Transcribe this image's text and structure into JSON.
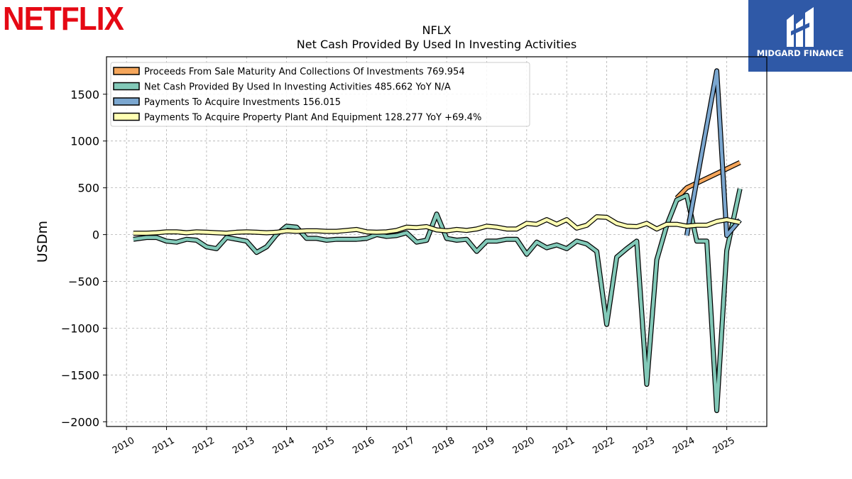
{
  "logos": {
    "left_text": "NETFLIX",
    "right_text": "MIDGARD FINANCE"
  },
  "chart_data": {
    "type": "line",
    "title": "NFLX",
    "subtitle": "Net Cash Provided By Used In Investing Activities",
    "xlabel": "",
    "ylabel": "USDm",
    "xlim": [
      2009.5,
      2026.0
    ],
    "ylim": [
      -2050,
      1900
    ],
    "yticks": [
      -2000,
      -1500,
      -1000,
      -500,
      0,
      500,
      1000,
      1500
    ],
    "yticklabels": [
      "−2000",
      "−1500",
      "−1000",
      "−500",
      "0",
      "500",
      "1000",
      "1500"
    ],
    "xticks": [
      "2010",
      "2011",
      "2012",
      "2013",
      "2014",
      "2015",
      "2016",
      "2017",
      "2018",
      "2019",
      "2020",
      "2021",
      "2022",
      "2023",
      "2024",
      "2025"
    ],
    "grid": true,
    "legend_position": "top-left",
    "series": [
      {
        "name": "Proceeds From Sale Maturity And Collections Of Investments",
        "legend_label": "Proceeds From Sale Maturity And Collections Of Investments  769.954",
        "color": "#f5a65b",
        "x": [
          2023.75,
          2024.0,
          2025.33
        ],
        "y": [
          390,
          500,
          770
        ]
      },
      {
        "name": "Net Cash Provided By Used In Investing Activities",
        "legend_label": "Net Cash Provided By Used In Investing Activities  485.662 YoY N/A",
        "color": "#82c9b8",
        "x": [
          2010.17,
          2010.5,
          2010.75,
          2011.0,
          2011.25,
          2011.5,
          2011.75,
          2012.0,
          2012.25,
          2012.5,
          2012.75,
          2013.0,
          2013.25,
          2013.5,
          2013.75,
          2014.0,
          2014.25,
          2014.5,
          2014.75,
          2015.0,
          2015.25,
          2015.5,
          2015.75,
          2016.0,
          2016.25,
          2016.5,
          2016.75,
          2017.0,
          2017.25,
          2017.5,
          2017.75,
          2018.0,
          2018.25,
          2018.5,
          2018.75,
          2019.0,
          2019.25,
          2019.5,
          2019.75,
          2020.0,
          2020.25,
          2020.5,
          2020.75,
          2021.0,
          2021.25,
          2021.5,
          2021.75,
          2022.0,
          2022.25,
          2022.5,
          2022.75,
          2023.0,
          2023.25,
          2023.5,
          2023.75,
          2024.0,
          2024.25,
          2024.5,
          2024.75,
          2025.0,
          2025.33
        ],
        "y": [
          -50,
          -30,
          -30,
          -70,
          -80,
          -50,
          -60,
          -130,
          -150,
          -30,
          -50,
          -70,
          -190,
          -130,
          0,
          90,
          80,
          -40,
          -40,
          -60,
          -50,
          -50,
          -50,
          -40,
          0,
          -20,
          -10,
          20,
          -80,
          -60,
          220,
          -40,
          -60,
          -50,
          -180,
          -70,
          -70,
          -50,
          -50,
          -210,
          -80,
          -140,
          -110,
          -150,
          -70,
          -100,
          -180,
          -960,
          -240,
          -150,
          -70,
          -1600,
          -270,
          100,
          370,
          420,
          -70,
          -70,
          -1880,
          -170,
          490
        ]
      },
      {
        "name": "Payments To Acquire Investments",
        "legend_label": "Payments To Acquire Investments  156.015",
        "color": "#7ba7d0",
        "x": [
          2024.0,
          2024.75,
          2025.0,
          2025.33
        ],
        "y": [
          -10,
          1750,
          -10,
          156
        ]
      },
      {
        "name": "Payments To Acquire Property Plant And Equipment",
        "legend_label": "Payments To Acquire Property Plant And Equipment  128.277 YoY +69.4%",
        "color": "#ffffb3",
        "x": [
          2010.17,
          2010.5,
          2010.75,
          2011.0,
          2011.25,
          2011.5,
          2011.75,
          2012.0,
          2012.25,
          2012.5,
          2012.75,
          2013.0,
          2013.25,
          2013.5,
          2013.75,
          2014.0,
          2014.25,
          2014.5,
          2014.75,
          2015.0,
          2015.25,
          2015.5,
          2015.75,
          2016.0,
          2016.25,
          2016.5,
          2016.75,
          2017.0,
          2017.25,
          2017.5,
          2017.75,
          2018.0,
          2018.25,
          2018.5,
          2018.75,
          2019.0,
          2019.25,
          2019.5,
          2019.75,
          2020.0,
          2020.25,
          2020.5,
          2020.75,
          2021.0,
          2021.25,
          2021.5,
          2021.75,
          2022.0,
          2022.25,
          2022.5,
          2022.75,
          2023.0,
          2023.25,
          2023.5,
          2023.75,
          2024.0,
          2024.25,
          2024.5,
          2024.75,
          2025.0,
          2025.33
        ],
        "y": [
          15,
          15,
          20,
          30,
          30,
          20,
          30,
          25,
          20,
          15,
          25,
          30,
          25,
          20,
          25,
          40,
          35,
          40,
          40,
          35,
          35,
          45,
          55,
          30,
          25,
          30,
          45,
          80,
          75,
          85,
          50,
          40,
          55,
          45,
          60,
          90,
          80,
          60,
          60,
          120,
          110,
          160,
          110,
          160,
          70,
          100,
          190,
          185,
          120,
          90,
          85,
          120,
          60,
          110,
          110,
          90,
          100,
          100,
          140,
          160,
          130
        ]
      }
    ]
  }
}
